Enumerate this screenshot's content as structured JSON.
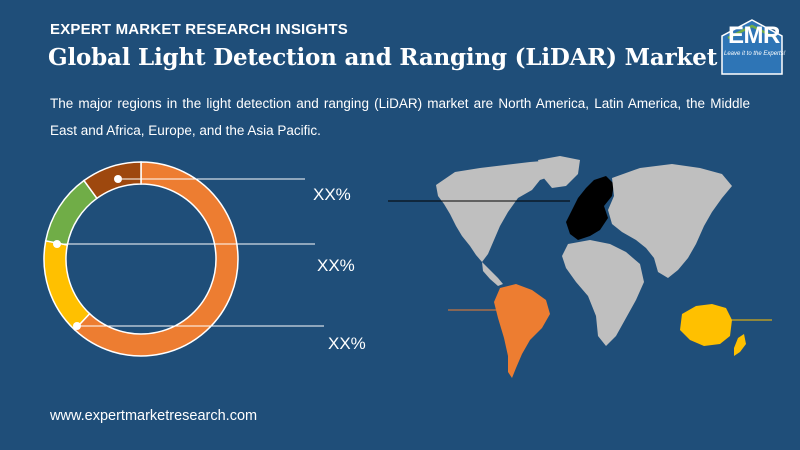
{
  "header": {
    "kicker": "EXPERT MARKET RESEARCH INSIGHTS",
    "title": "Global Light Detection and Ranging (LiDAR) Market",
    "description": "The major regions in the light detection and ranging (LiDAR) market are North America, Latin America, the Middle East and Africa, Europe, and the Asia Pacific."
  },
  "logo": {
    "text": "EMR",
    "tagline": "Leave it to the Experts!"
  },
  "footer": {
    "url": "www.expertmarketresearch.com"
  },
  "colors": {
    "background": "#1f4e79",
    "orange": "#ed7d31",
    "yellow": "#ffc000",
    "green": "#70ad47",
    "brown": "#9e480e",
    "map_gray": "#bfbfbf",
    "europe": "#000000"
  },
  "chart_data": {
    "type": "pie",
    "donut": true,
    "slices": [
      {
        "color": "#ed7d31",
        "value": 62
      },
      {
        "color": "#ffc000",
        "value": 16
      },
      {
        "color": "#70ad47",
        "value": 12
      },
      {
        "color": "#9e480e",
        "value": 10
      }
    ],
    "labels": [
      "XX%",
      "XX%",
      "XX%"
    ]
  }
}
